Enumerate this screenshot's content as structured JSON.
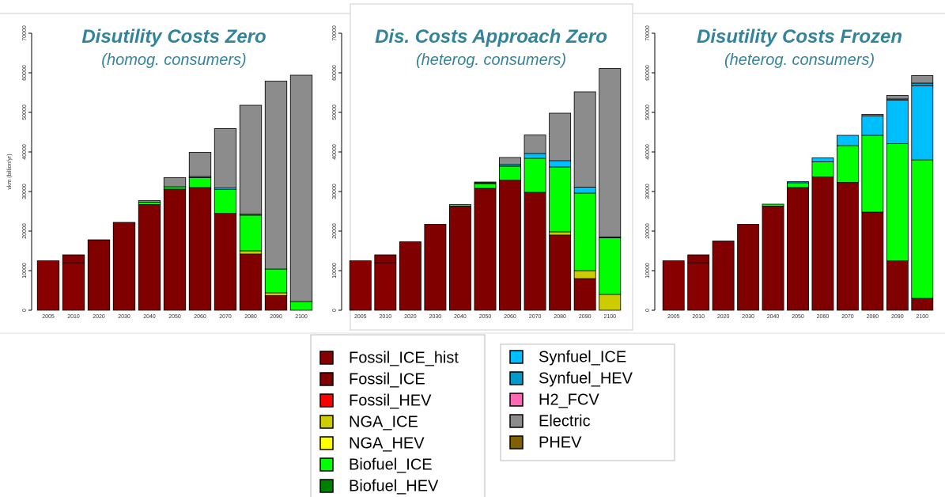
{
  "chart_data": [
    {
      "type": "stacked_bar",
      "title": "Disutility Costs Zero",
      "subtitle": "(homog. consumers)",
      "ylabel": "vkm (billion/yr)",
      "categories": [
        "2005",
        "2010",
        "2020",
        "2030",
        "2040",
        "2050",
        "2060",
        "2070",
        "2080",
        "2090",
        "2100"
      ],
      "ylim": [
        0,
        70000
      ],
      "yticks": [
        0,
        10000,
        20000,
        30000,
        40000,
        50000,
        60000,
        70000
      ],
      "series": [
        {
          "name": "Fossil_ICE_hist",
          "color": "#880000",
          "values": [
            12500,
            12000,
            0,
            0,
            0,
            0,
            0,
            0,
            0,
            0,
            0
          ]
        },
        {
          "name": "Fossil_ICE",
          "color": "#800000",
          "values": [
            0,
            2000,
            17800,
            22200,
            26700,
            30600,
            31000,
            24500,
            14200,
            3700,
            0
          ]
        },
        {
          "name": "Fossil_HEV",
          "color": "#ff0000",
          "values": [
            0,
            0,
            0,
            0,
            0,
            0,
            0,
            0,
            0,
            0,
            0
          ]
        },
        {
          "name": "NGA_ICE",
          "color": "#cccc00",
          "values": [
            0,
            0,
            0,
            0,
            0,
            0,
            0,
            0,
            800,
            700,
            0
          ]
        },
        {
          "name": "NGA_HEV",
          "color": "#ffff00",
          "values": [
            0,
            0,
            0,
            0,
            0,
            0,
            0,
            0,
            0,
            0,
            0
          ]
        },
        {
          "name": "Biofuel_ICE",
          "color": "#00ff00",
          "values": [
            0,
            0,
            0,
            0,
            600,
            600,
            2500,
            6000,
            9000,
            6000,
            2200
          ]
        },
        {
          "name": "Biofuel_HEV",
          "color": "#008000",
          "values": [
            0,
            0,
            0,
            0,
            0,
            0,
            0,
            0,
            0,
            0,
            0
          ]
        },
        {
          "name": "Synfuel_ICE",
          "color": "#00bfff",
          "values": [
            0,
            0,
            0,
            0,
            0,
            0,
            300,
            400,
            300,
            0,
            0
          ]
        },
        {
          "name": "Synfuel_HEV",
          "color": "#0099cc",
          "values": [
            0,
            0,
            0,
            0,
            0,
            0,
            0,
            0,
            0,
            0,
            0
          ]
        },
        {
          "name": "H2_FCV",
          "color": "#ff69b4",
          "values": [
            0,
            0,
            0,
            0,
            0,
            0,
            0,
            0,
            0,
            0,
            0
          ]
        },
        {
          "name": "Electric",
          "color": "#8c8c8c",
          "values": [
            0,
            0,
            0,
            0,
            400,
            2300,
            6100,
            15000,
            27500,
            47500,
            57200
          ]
        },
        {
          "name": "PHEV",
          "color": "#806000",
          "values": [
            0,
            0,
            0,
            0,
            0,
            0,
            0,
            0,
            0,
            0,
            0
          ]
        }
      ]
    },
    {
      "type": "stacked_bar",
      "title": "Dis. Costs Approach Zero",
      "subtitle": "(heterog. consumers)",
      "categories": [
        "2005",
        "2010",
        "2020",
        "2030",
        "2040",
        "2050",
        "2060",
        "2070",
        "2080",
        "2090",
        "2100"
      ],
      "ylim": [
        0,
        70000
      ],
      "yticks": [
        0,
        10000,
        20000,
        30000,
        40000,
        50000,
        60000,
        70000
      ],
      "series": [
        {
          "name": "Fossil_ICE_hist",
          "color": "#880000",
          "values": [
            12500,
            12000,
            0,
            0,
            0,
            0,
            0,
            0,
            0,
            0,
            0
          ]
        },
        {
          "name": "Fossil_ICE",
          "color": "#800000",
          "values": [
            0,
            2000,
            17300,
            21700,
            26300,
            30800,
            32900,
            29800,
            19000,
            8000,
            0
          ]
        },
        {
          "name": "Fossil_HEV",
          "color": "#ff0000",
          "values": [
            0,
            0,
            0,
            0,
            0,
            0,
            0,
            0,
            0,
            0,
            0
          ]
        },
        {
          "name": "NGA_ICE",
          "color": "#cccc00",
          "values": [
            0,
            0,
            0,
            0,
            0,
            0,
            0,
            0,
            800,
            2000,
            4000
          ]
        },
        {
          "name": "NGA_HEV",
          "color": "#ffff00",
          "values": [
            0,
            0,
            0,
            0,
            0,
            0,
            0,
            0,
            0,
            0,
            0
          ]
        },
        {
          "name": "Biofuel_ICE",
          "color": "#00ff00",
          "values": [
            0,
            0,
            0,
            0,
            400,
            1200,
            3500,
            8600,
            16400,
            19600,
            14300
          ]
        },
        {
          "name": "Biofuel_HEV",
          "color": "#008000",
          "values": [
            0,
            0,
            0,
            0,
            0,
            0,
            0,
            0,
            0,
            0,
            0
          ]
        },
        {
          "name": "Synfuel_ICE",
          "color": "#00bfff",
          "values": [
            0,
            0,
            0,
            0,
            0,
            200,
            400,
            1200,
            1600,
            1500,
            200
          ]
        },
        {
          "name": "Synfuel_HEV",
          "color": "#0099cc",
          "values": [
            0,
            0,
            0,
            0,
            0,
            0,
            0,
            0,
            0,
            0,
            0
          ]
        },
        {
          "name": "H2_FCV",
          "color": "#ff69b4",
          "values": [
            0,
            0,
            0,
            0,
            0,
            0,
            0,
            0,
            0,
            0,
            0
          ]
        },
        {
          "name": "Electric",
          "color": "#8c8c8c",
          "values": [
            0,
            0,
            0,
            0,
            0,
            200,
            1800,
            4700,
            12000,
            24100,
            42600
          ]
        },
        {
          "name": "PHEV",
          "color": "#806000",
          "values": [
            0,
            0,
            0,
            0,
            0,
            0,
            0,
            0,
            0,
            0,
            0
          ]
        }
      ]
    },
    {
      "type": "stacked_bar",
      "title": "Disutility Costs Frozen",
      "subtitle": "(heterog. consumers)",
      "categories": [
        "2005",
        "2010",
        "2020",
        "2030",
        "2040",
        "2050",
        "2060",
        "2070",
        "2080",
        "2090",
        "2100"
      ],
      "ylim": [
        0,
        70000
      ],
      "yticks": [
        0,
        10000,
        20000,
        30000,
        40000,
        50000,
        60000,
        70000
      ],
      "series": [
        {
          "name": "Fossil_ICE_hist",
          "color": "#880000",
          "values": [
            12500,
            12000,
            0,
            0,
            0,
            0,
            0,
            0,
            0,
            0,
            0
          ]
        },
        {
          "name": "Fossil_ICE",
          "color": "#800000",
          "values": [
            0,
            2000,
            17500,
            21700,
            26300,
            31000,
            33700,
            32300,
            24800,
            12500,
            3000
          ]
        },
        {
          "name": "Fossil_HEV",
          "color": "#ff0000",
          "values": [
            0,
            0,
            0,
            0,
            0,
            0,
            0,
            0,
            0,
            0,
            0
          ]
        },
        {
          "name": "NGA_ICE",
          "color": "#cccc00",
          "values": [
            0,
            0,
            0,
            0,
            0,
            0,
            0,
            0,
            0,
            0,
            0
          ]
        },
        {
          "name": "NGA_HEV",
          "color": "#ffff00",
          "values": [
            0,
            0,
            0,
            0,
            0,
            0,
            0,
            0,
            0,
            0,
            0
          ]
        },
        {
          "name": "Biofuel_ICE",
          "color": "#00ff00",
          "values": [
            0,
            0,
            0,
            0,
            500,
            1200,
            3800,
            9300,
            19400,
            29600,
            35000
          ]
        },
        {
          "name": "Biofuel_HEV",
          "color": "#008000",
          "values": [
            0,
            0,
            0,
            0,
            0,
            0,
            0,
            0,
            0,
            0,
            0
          ]
        },
        {
          "name": "Synfuel_ICE",
          "color": "#00bfff",
          "values": [
            0,
            0,
            0,
            0,
            0,
            300,
            1000,
            2600,
            4900,
            11000,
            18700
          ]
        },
        {
          "name": "Synfuel_HEV",
          "color": "#0099cc",
          "values": [
            0,
            0,
            0,
            0,
            0,
            0,
            0,
            0,
            0,
            300,
            700
          ]
        },
        {
          "name": "H2_FCV",
          "color": "#ff69b4",
          "values": [
            0,
            0,
            0,
            0,
            0,
            0,
            0,
            0,
            0,
            0,
            0
          ]
        },
        {
          "name": "Electric",
          "color": "#8c8c8c",
          "values": [
            0,
            0,
            0,
            0,
            0,
            0,
            0,
            0,
            400,
            900,
            1900
          ]
        },
        {
          "name": "PHEV",
          "color": "#806000",
          "values": [
            0,
            0,
            0,
            0,
            0,
            0,
            0,
            0,
            0,
            0,
            0
          ]
        }
      ]
    }
  ]
}
